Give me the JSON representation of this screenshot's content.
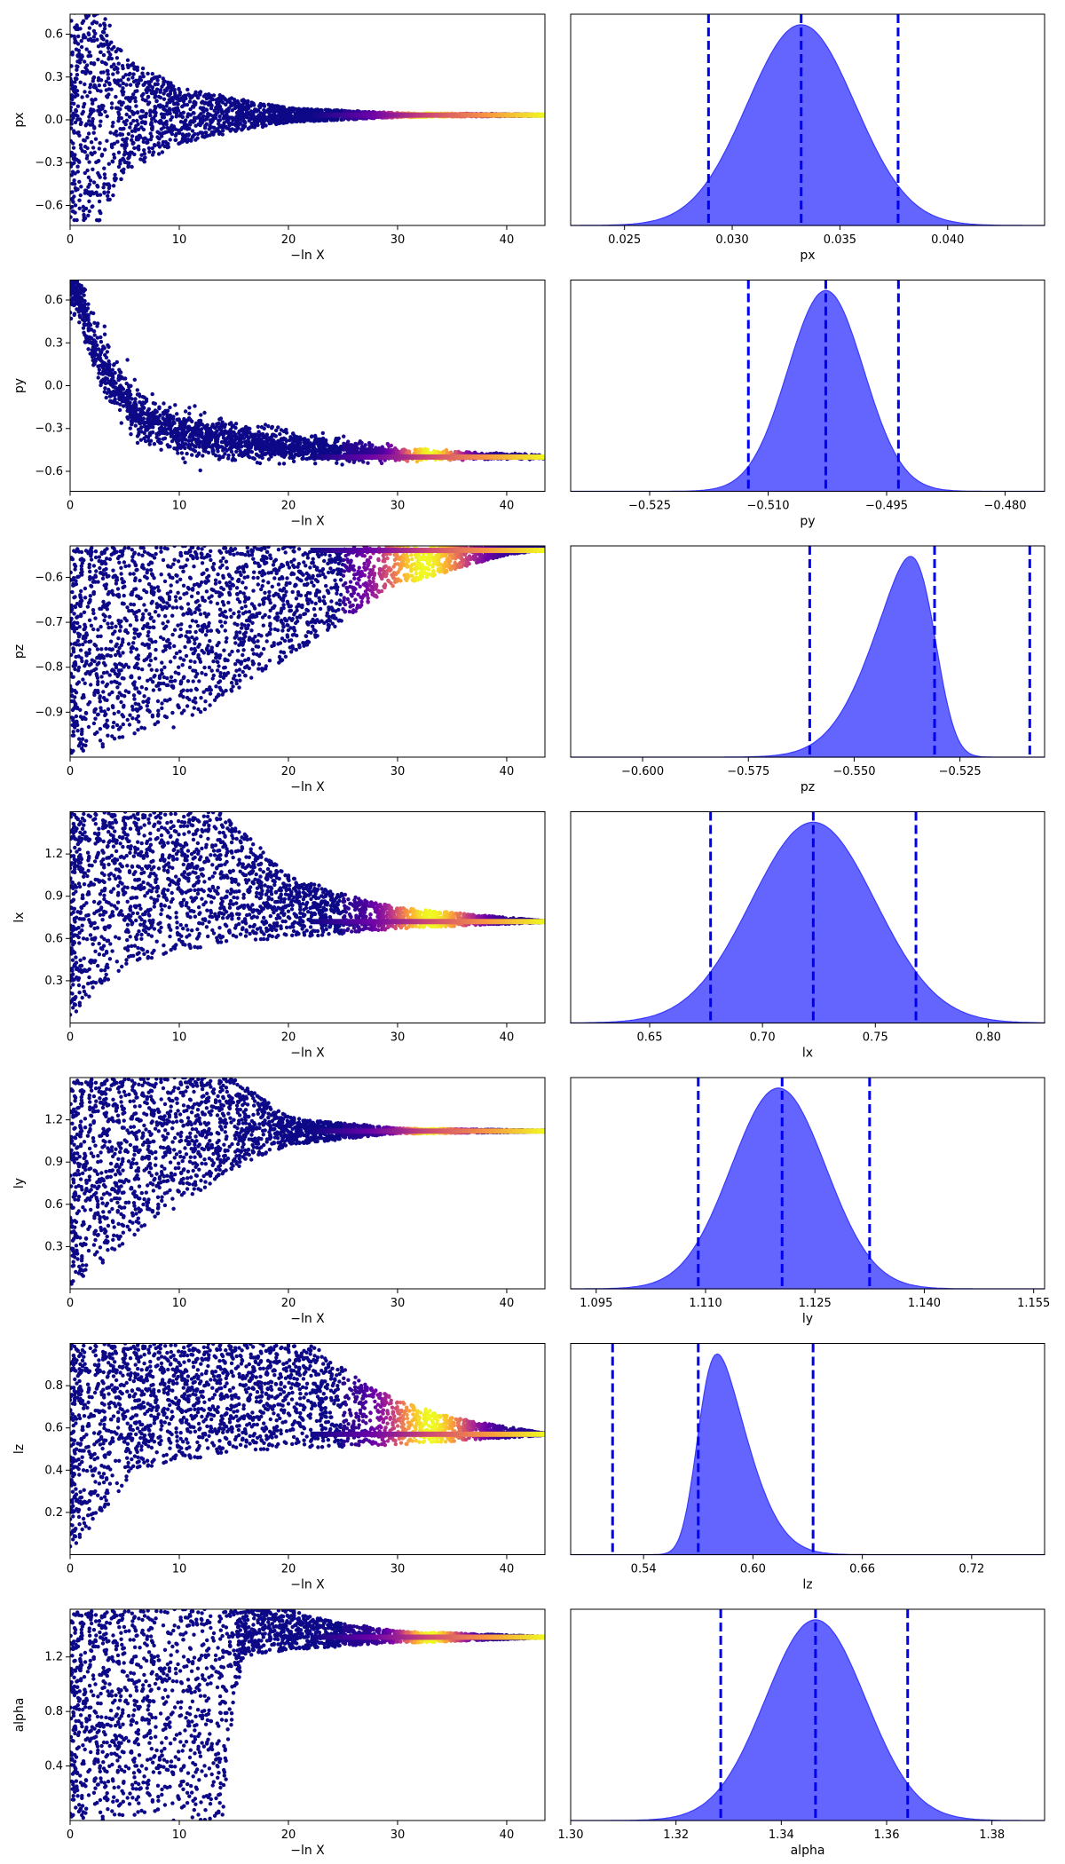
{
  "figure": {
    "xlabel_left": "−ln X",
    "colormap": "plasma",
    "kde_fill_color": "#6464ff",
    "kde_edge_color": "#3a3aff",
    "quantile_line_color": "#0000ee",
    "trace_xlim": [
      0,
      43.5
    ],
    "trace_xticks": [
      0,
      10,
      20,
      30,
      40
    ],
    "trace_xtick_labels": [
      "0",
      "10",
      "20",
      "30",
      "40"
    ]
  },
  "chart_data": [
    {
      "type": "scatter",
      "name": "px",
      "left": {
        "ylabel": "px",
        "ylim": [
          -0.74,
          0.74
        ],
        "yticks": [
          -0.6,
          -0.3,
          0.0,
          0.3,
          0.6
        ],
        "ytick_labels": [
          "−0.6",
          "−0.3",
          "0.0",
          "0.3",
          "0.6"
        ],
        "converged_value": 0.033,
        "spread_profile": [
          [
            0,
            0.74
          ],
          [
            3,
            0.74
          ],
          [
            5,
            0.4
          ],
          [
            10,
            0.2
          ],
          [
            15,
            0.12
          ],
          [
            20,
            0.05
          ],
          [
            30,
            0.015
          ],
          [
            43.5,
            0.005
          ]
        ],
        "bright_band": [
          29,
          37
        ]
      },
      "right": {
        "xlabel": "px",
        "xlim": [
          0.0225,
          0.0445
        ],
        "xticks": [
          0.025,
          0.03,
          0.035,
          0.04
        ],
        "xtick_labels": [
          "0.025",
          "0.030",
          "0.035",
          "0.040"
        ],
        "mean": 0.0332,
        "sd": 0.0025,
        "skew": 0,
        "quantiles": [
          0.0289,
          0.0332,
          0.0377
        ]
      }
    },
    {
      "type": "scatter",
      "name": "py",
      "left": {
        "ylabel": "py",
        "ylim": [
          -0.74,
          0.74
        ],
        "yticks": [
          -0.6,
          -0.3,
          0.0,
          0.3,
          0.6
        ],
        "ytick_labels": [
          "−0.6",
          "−0.3",
          "0.0",
          "0.3",
          "0.6"
        ],
        "converged_value": -0.5,
        "tail_curve": [
          [
            0,
            0.74
          ],
          [
            1,
            0.6
          ],
          [
            2,
            0.3
          ],
          [
            4,
            0.0
          ],
          [
            7,
            -0.25
          ],
          [
            12,
            -0.37
          ],
          [
            20,
            -0.43
          ],
          [
            30,
            -0.48
          ],
          [
            43.5,
            -0.5
          ]
        ],
        "spread_profile": [
          [
            0,
            0.1
          ],
          [
            5,
            0.08
          ],
          [
            10,
            0.07
          ],
          [
            20,
            0.05
          ],
          [
            30,
            0.02
          ],
          [
            43.5,
            0.005
          ]
        ],
        "bright_band": [
          30,
          36
        ]
      },
      "right": {
        "xlabel": "py",
        "xlim": [
          -0.535,
          -0.475
        ],
        "xticks": [
          -0.525,
          -0.51,
          -0.495,
          -0.48
        ],
        "xtick_labels": [
          "−0.525",
          "−0.510",
          "−0.495",
          "−0.480"
        ],
        "mean": -0.5027,
        "sd": 0.0048,
        "skew": 0,
        "quantiles": [
          -0.5125,
          -0.5027,
          -0.4935
        ]
      }
    },
    {
      "type": "scatter",
      "name": "pz",
      "left": {
        "ylabel": "pz",
        "ylim": [
          -1.0,
          -0.53
        ],
        "yticks": [
          -0.9,
          -0.8,
          -0.7,
          -0.6
        ],
        "ytick_labels": [
          "−0.9",
          "−0.8",
          "−0.7",
          "−0.6"
        ],
        "converged_value": -0.54,
        "lower_bound": [
          [
            0,
            -1.0
          ],
          [
            10,
            -0.93
          ],
          [
            20,
            -0.78
          ],
          [
            30,
            -0.62
          ],
          [
            40,
            -0.55
          ],
          [
            43.5,
            -0.54
          ]
        ],
        "upper_bound": [
          [
            0,
            -0.53
          ],
          [
            43.5,
            -0.53
          ]
        ],
        "bright_band": [
          28,
          37
        ]
      },
      "right": {
        "xlabel": "pz",
        "xlim": [
          -0.617,
          -0.505
        ],
        "xticks": [
          -0.6,
          -0.575,
          -0.55,
          -0.525
        ],
        "xtick_labels": [
          "−0.600",
          "−0.575",
          "−0.550",
          "−0.525"
        ],
        "mean": -0.531,
        "sd": 0.012,
        "skew": -3,
        "quantiles": [
          -0.5605,
          -0.531,
          -0.5085
        ]
      }
    },
    {
      "type": "scatter",
      "name": "lx",
      "left": {
        "ylabel": "lx",
        "ylim": [
          0.0,
          1.5
        ],
        "yticks": [
          0.3,
          0.6,
          0.9,
          1.2
        ],
        "ytick_labels": [
          "0.3",
          "0.6",
          "0.9",
          "1.2"
        ],
        "converged_value": 0.72,
        "lower_bound": [
          [
            0,
            0.0
          ],
          [
            2,
            0.2
          ],
          [
            5,
            0.4
          ],
          [
            10,
            0.52
          ],
          [
            20,
            0.6
          ],
          [
            30,
            0.67
          ],
          [
            43.5,
            0.715
          ]
        ],
        "upper_bound": [
          [
            0,
            1.5
          ],
          [
            14,
            1.5
          ],
          [
            20,
            1.05
          ],
          [
            25,
            0.92
          ],
          [
            30,
            0.82
          ],
          [
            43.5,
            0.725
          ]
        ],
        "bright_band": [
          29,
          37
        ]
      },
      "right": {
        "xlabel": "lx",
        "xlim": [
          0.615,
          0.825
        ],
        "xticks": [
          0.65,
          0.7,
          0.75,
          0.8
        ],
        "xtick_labels": [
          "0.65",
          "0.70",
          "0.75",
          "0.80"
        ],
        "mean": 0.7225,
        "sd": 0.0275,
        "skew": 0,
        "quantiles": [
          0.677,
          0.7225,
          0.768
        ]
      }
    },
    {
      "type": "scatter",
      "name": "ly",
      "left": {
        "ylabel": "ly",
        "ylim": [
          0.0,
          1.5
        ],
        "yticks": [
          0.3,
          0.6,
          0.9,
          1.2
        ],
        "ytick_labels": [
          "0.3",
          "0.6",
          "0.9",
          "1.2"
        ],
        "converged_value": 1.12,
        "lower_bound": [
          [
            0,
            0.0
          ],
          [
            5,
            0.3
          ],
          [
            10,
            0.6
          ],
          [
            15,
            0.85
          ],
          [
            20,
            1.02
          ],
          [
            30,
            1.1
          ],
          [
            43.5,
            1.115
          ]
        ],
        "upper_bound": [
          [
            0,
            1.5
          ],
          [
            15,
            1.5
          ],
          [
            20,
            1.22
          ],
          [
            30,
            1.14
          ],
          [
            43.5,
            1.125
          ]
        ],
        "bright_band": [
          30,
          36
        ]
      },
      "right": {
        "xlabel": "ly",
        "xlim": [
          1.0915,
          1.1565
        ],
        "xticks": [
          1.095,
          1.11,
          1.125,
          1.14,
          1.155
        ],
        "xtick_labels": [
          "1.095",
          "1.110",
          "1.125",
          "1.140",
          "1.155"
        ],
        "mean": 1.12,
        "sd": 0.0065,
        "skew": 0,
        "quantiles": [
          1.109,
          1.1205,
          1.1325
        ]
      }
    },
    {
      "type": "scatter",
      "name": "lz",
      "left": {
        "ylabel": "lz",
        "ylim": [
          0.0,
          1.0
        ],
        "yticks": [
          0.2,
          0.4,
          0.6,
          0.8
        ],
        "ytick_labels": [
          "0.2",
          "0.4",
          "0.6",
          "0.8"
        ],
        "converged_value": 0.57,
        "lower_bound": [
          [
            0,
            0.0
          ],
          [
            3,
            0.2
          ],
          [
            6,
            0.4
          ],
          [
            10,
            0.45
          ],
          [
            20,
            0.5
          ],
          [
            30,
            0.52
          ],
          [
            43.5,
            0.565
          ]
        ],
        "upper_bound": [
          [
            0,
            1.0
          ],
          [
            22,
            1.0
          ],
          [
            26,
            0.85
          ],
          [
            30,
            0.73
          ],
          [
            35,
            0.65
          ],
          [
            43.5,
            0.575
          ]
        ],
        "bright_band": [
          29,
          37
        ]
      },
      "right": {
        "xlabel": "lz",
        "xlim": [
          0.5,
          0.76
        ],
        "xticks": [
          0.54,
          0.6,
          0.66,
          0.72
        ],
        "xtick_labels": [
          "0.54",
          "0.60",
          "0.66",
          "0.72"
        ],
        "mean": 0.57,
        "sd": 0.022,
        "skew": 3,
        "quantiles": [
          0.523,
          0.57,
          0.633
        ]
      }
    },
    {
      "type": "scatter",
      "name": "alpha",
      "left": {
        "ylabel": "alpha",
        "ylim": [
          0.0,
          1.55
        ],
        "yticks": [
          0.4,
          0.8,
          1.2
        ],
        "ytick_labels": [
          "0.4",
          "0.8",
          "1.2"
        ],
        "converged_value": 1.345,
        "lower_bound": [
          [
            0,
            0.0
          ],
          [
            14,
            0.0
          ],
          [
            15,
            0.9
          ],
          [
            16,
            1.2
          ],
          [
            20,
            1.25
          ],
          [
            30,
            1.3
          ],
          [
            43.5,
            1.34
          ]
        ],
        "upper_bound": [
          [
            0,
            1.55
          ],
          [
            20,
            1.55
          ],
          [
            25,
            1.45
          ],
          [
            30,
            1.39
          ],
          [
            43.5,
            1.35
          ]
        ],
        "bright_band": [
          30,
          36
        ]
      },
      "right": {
        "xlabel": "alpha",
        "xlim": [
          1.3,
          1.39
        ],
        "xticks": [
          1.3,
          1.32,
          1.34,
          1.36,
          1.38
        ],
        "xtick_labels": [
          "1.30",
          "1.32",
          "1.34",
          "1.36",
          "1.38"
        ],
        "mean": 1.3465,
        "sd": 0.0095,
        "skew": 0,
        "quantiles": [
          1.3285,
          1.3465,
          1.364
        ]
      }
    }
  ]
}
